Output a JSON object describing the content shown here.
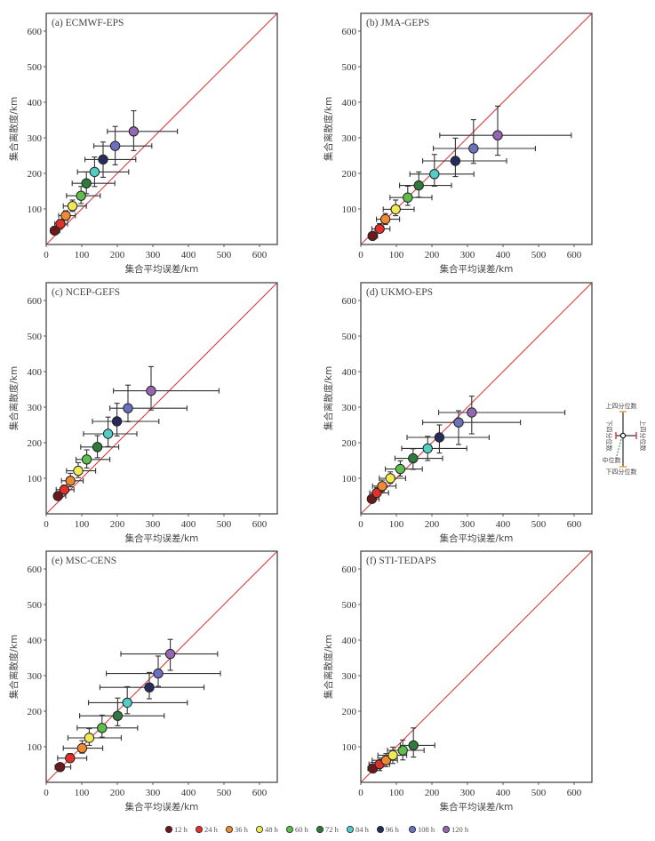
{
  "chart_data": {
    "type": "scatter",
    "description_labels": {
      "xlabel": "集合平均误差/km",
      "ylabel": "集合离散度/km"
    },
    "axis": {
      "xlim": [
        0,
        650
      ],
      "ylim": [
        0,
        650
      ],
      "xticks": [
        0,
        100,
        200,
        300,
        400,
        500,
        600
      ],
      "yticks": [
        100,
        200,
        300,
        400,
        500,
        600
      ],
      "diagonal_reference": "y = x",
      "diagonal_color": "#d93a3a",
      "grid": false
    },
    "lead_times": [
      "12 h",
      "24 h",
      "36 h",
      "48 h",
      "60 h",
      "72 h",
      "84 h",
      "96 h",
      "108 h",
      "120 h"
    ],
    "colors": [
      "#6b1a1c",
      "#e3302b",
      "#ef8a32",
      "#f2ea55",
      "#5cbf4c",
      "#2e7b3d",
      "#52cdc6",
      "#262d5c",
      "#6a72bf",
      "#9766b3"
    ],
    "legend_position": "bottom-center",
    "panels": [
      {
        "title": "(a) ECMWF-EPS",
        "points": [
          {
            "lead": "12 h",
            "x": 24,
            "y": 39,
            "x_q": [
              12,
              38
            ],
            "y_q": [
              28,
              50
            ]
          },
          {
            "lead": "24 h",
            "x": 40,
            "y": 58,
            "x_q": [
              24,
              60
            ],
            "y_q": [
              45,
              70
            ]
          },
          {
            "lead": "36 h",
            "x": 55,
            "y": 81,
            "x_q": [
              35,
              82
            ],
            "y_q": [
              68,
              95
            ]
          },
          {
            "lead": "48 h",
            "x": 74,
            "y": 108,
            "x_q": [
              48,
              113
            ],
            "y_q": [
              93,
              125
            ]
          },
          {
            "lead": "60 h",
            "x": 98,
            "y": 137,
            "x_q": [
              57,
              152
            ],
            "y_q": [
              115,
              163
            ]
          },
          {
            "lead": "72 h",
            "x": 113,
            "y": 172,
            "x_q": [
              73,
              193
            ],
            "y_q": [
              143,
              204
            ]
          },
          {
            "lead": "84 h",
            "x": 136,
            "y": 204,
            "x_q": [
              88,
              232
            ],
            "y_q": [
              163,
              246
            ]
          },
          {
            "lead": "96 h",
            "x": 160,
            "y": 239,
            "x_q": [
              109,
              252
            ],
            "y_q": [
              189,
              288
            ]
          },
          {
            "lead": "108 h",
            "x": 194,
            "y": 277,
            "x_q": [
              134,
              297
            ],
            "y_q": [
              224,
              332
            ]
          },
          {
            "lead": "120 h",
            "x": 246,
            "y": 318,
            "x_q": [
              172,
              369
            ],
            "y_q": [
              264,
              376
            ]
          }
        ]
      },
      {
        "title": "(b) JMA-GEPS",
        "points": [
          {
            "lead": "12 h",
            "x": 33,
            "y": 24,
            "x_q": [
              22,
              47
            ],
            "y_q": [
              15,
              34
            ]
          },
          {
            "lead": "24 h",
            "x": 53,
            "y": 44,
            "x_q": [
              31,
              82
            ],
            "y_q": [
              34,
              59
            ]
          },
          {
            "lead": "36 h",
            "x": 69,
            "y": 71,
            "x_q": [
              44,
              109
            ],
            "y_q": [
              56,
              87
            ]
          },
          {
            "lead": "48 h",
            "x": 98,
            "y": 99,
            "x_q": [
              63,
              150
            ],
            "y_q": [
              81,
              125
            ]
          },
          {
            "lead": "60 h",
            "x": 132,
            "y": 132,
            "x_q": [
              82,
              200
            ],
            "y_q": [
              110,
              164
            ]
          },
          {
            "lead": "72 h",
            "x": 163,
            "y": 166,
            "x_q": [
              109,
              255
            ],
            "y_q": [
              133,
              204
            ]
          },
          {
            "lead": "84 h",
            "x": 207,
            "y": 198,
            "x_q": [
              138,
              318
            ],
            "y_q": [
              164,
              253
            ]
          },
          {
            "lead": "96 h",
            "x": 266,
            "y": 235,
            "x_q": [
              174,
              410
            ],
            "y_q": [
              191,
              299
            ]
          },
          {
            "lead": "108 h",
            "x": 317,
            "y": 270,
            "x_q": [
              204,
              491
            ],
            "y_q": [
              228,
              351
            ]
          },
          {
            "lead": "120 h",
            "x": 385,
            "y": 307,
            "x_q": [
              222,
              592
            ],
            "y_q": [
              251,
              389
            ]
          }
        ]
      },
      {
        "title": "(c) NCEP-GEFS",
        "points": [
          {
            "lead": "12 h",
            "x": 33,
            "y": 50,
            "x_q": [
              23,
              55
            ],
            "y_q": [
              42,
              60
            ]
          },
          {
            "lead": "24 h",
            "x": 51,
            "y": 68,
            "x_q": [
              28,
              78
            ],
            "y_q": [
              56,
              81
            ]
          },
          {
            "lead": "36 h",
            "x": 68,
            "y": 93,
            "x_q": [
              43,
              104
            ],
            "y_q": [
              76,
              114
            ]
          },
          {
            "lead": "48 h",
            "x": 90,
            "y": 121,
            "x_q": [
              57,
              139
            ],
            "y_q": [
              102,
              144
            ]
          },
          {
            "lead": "60 h",
            "x": 114,
            "y": 153,
            "x_q": [
              84,
              179
            ],
            "y_q": [
              129,
              180
            ]
          },
          {
            "lead": "72 h",
            "x": 144,
            "y": 188,
            "x_q": [
              97,
              204
            ],
            "y_q": [
              158,
              220
            ]
          },
          {
            "lead": "84 h",
            "x": 174,
            "y": 225,
            "x_q": [
              105,
              255
            ],
            "y_q": [
              189,
              272
            ]
          },
          {
            "lead": "96 h",
            "x": 199,
            "y": 260,
            "x_q": [
              130,
              317
            ],
            "y_q": [
              219,
              311
            ]
          },
          {
            "lead": "108 h",
            "x": 230,
            "y": 297,
            "x_q": [
              179,
              396
            ],
            "y_q": [
              259,
              362
            ]
          },
          {
            "lead": "120 h",
            "x": 295,
            "y": 346,
            "x_q": [
              189,
              486
            ],
            "y_q": [
              292,
              414
            ]
          }
        ]
      },
      {
        "title": "(d) UKMO-EPS",
        "points": [
          {
            "lead": "12 h",
            "x": 31,
            "y": 42,
            "x_q": [
              20,
              51
            ],
            "y_q": [
              33,
              53
            ]
          },
          {
            "lead": "24 h",
            "x": 45,
            "y": 59,
            "x_q": [
              25,
              78
            ],
            "y_q": [
              48,
              74
            ]
          },
          {
            "lead": "36 h",
            "x": 60,
            "y": 78,
            "x_q": [
              33,
              99
            ],
            "y_q": [
              63,
              95
            ]
          },
          {
            "lead": "48 h",
            "x": 83,
            "y": 100,
            "x_q": [
              52,
              126
            ],
            "y_q": [
              86,
              118
            ]
          },
          {
            "lead": "60 h",
            "x": 111,
            "y": 126,
            "x_q": [
              69,
              173
            ],
            "y_q": [
              106,
              149
            ]
          },
          {
            "lead": "72 h",
            "x": 147,
            "y": 156,
            "x_q": [
              96,
              230
            ],
            "y_q": [
              125,
              183
            ]
          },
          {
            "lead": "84 h",
            "x": 188,
            "y": 184,
            "x_q": [
              115,
              298
            ],
            "y_q": [
              150,
              218
            ]
          },
          {
            "lead": "96 h",
            "x": 221,
            "y": 215,
            "x_q": [
              130,
              361
            ],
            "y_q": [
              171,
              250
            ]
          },
          {
            "lead": "108 h",
            "x": 275,
            "y": 257,
            "x_q": [
              174,
              449
            ],
            "y_q": [
              195,
              290
            ]
          },
          {
            "lead": "120 h",
            "x": 312,
            "y": 285,
            "x_q": [
              219,
              574
            ],
            "y_q": [
              225,
              331
            ]
          }
        ]
      },
      {
        "title": "(e) MSC-CENS",
        "points": [
          {
            "lead": "12 h",
            "x": 39,
            "y": 43,
            "x_q": [
              25,
              69
            ],
            "y_q": [
              35,
              53
            ]
          },
          {
            "lead": "24 h",
            "x": 67,
            "y": 68,
            "x_q": [
              32,
              114
            ],
            "y_q": [
              59,
              81
            ]
          },
          {
            "lead": "36 h",
            "x": 101,
            "y": 96,
            "x_q": [
              48,
              159
            ],
            "y_q": [
              82,
              117
            ]
          },
          {
            "lead": "48 h",
            "x": 121,
            "y": 125,
            "x_q": [
              61,
              211
            ],
            "y_q": [
              104,
              151
            ]
          },
          {
            "lead": "60 h",
            "x": 157,
            "y": 153,
            "x_q": [
              87,
              257
            ],
            "y_q": [
              127,
              189
            ]
          },
          {
            "lead": "72 h",
            "x": 201,
            "y": 187,
            "x_q": [
              94,
              332
            ],
            "y_q": [
              159,
              237
            ]
          },
          {
            "lead": "84 h",
            "x": 228,
            "y": 224,
            "x_q": [
              119,
              397
            ],
            "y_q": [
              193,
              269
            ]
          },
          {
            "lead": "96 h",
            "x": 290,
            "y": 267,
            "x_q": [
              151,
              444
            ],
            "y_q": [
              235,
              309
            ]
          },
          {
            "lead": "108 h",
            "x": 315,
            "y": 306,
            "x_q": [
              169,
              490
            ],
            "y_q": [
              270,
              355
            ]
          },
          {
            "lead": "120 h",
            "x": 349,
            "y": 361,
            "x_q": [
              210,
              482
            ],
            "y_q": [
              315,
              402
            ]
          }
        ]
      },
      {
        "title": "(f) STI-TEDAPS",
        "points": [
          {
            "lead": "12 h",
            "x": 34,
            "y": 39,
            "x_q": [
              20,
              55
            ],
            "y_q": [
              28,
              56
            ]
          },
          {
            "lead": "24 h",
            "x": 53,
            "y": 51,
            "x_q": [
              23,
              81
            ],
            "y_q": [
              33,
              68
            ]
          },
          {
            "lead": "36 h",
            "x": 71,
            "y": 62,
            "x_q": [
              32,
              103
            ],
            "y_q": [
              44,
              81
            ]
          },
          {
            "lead": "48 h",
            "x": 90,
            "y": 76,
            "x_q": [
              48,
              129
            ],
            "y_q": [
              53,
              99
            ]
          },
          {
            "lead": "60 h",
            "x": 118,
            "y": 90,
            "x_q": [
              75,
              178
            ],
            "y_q": [
              63,
              119
            ]
          },
          {
            "lead": "72 h",
            "x": 148,
            "y": 104,
            "x_q": [
              111,
              208
            ],
            "y_q": [
              71,
              153
            ]
          }
        ]
      }
    ],
    "inset_legend": {
      "top": "上四分位数",
      "bottom": "下四分位数",
      "left": "下四分位数",
      "right": "上四分位数",
      "median": "中位数",
      "vertical_cap_color": "#f0a040",
      "horizontal_cap_color": "#d93a4a",
      "median_arrow_color": "#2e8b3d"
    }
  }
}
